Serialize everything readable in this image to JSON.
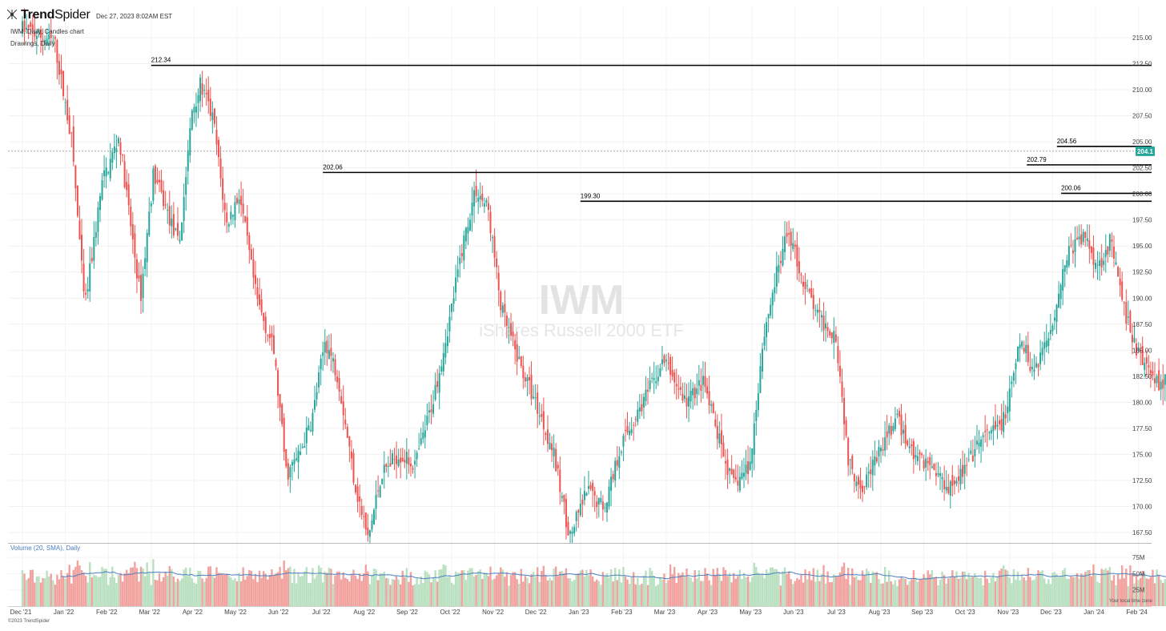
{
  "header": {
    "brand_bold": "Trend",
    "brand_light": "Spider",
    "timestamp": "Dec 27, 2023 8:02AM EST",
    "chart_desc": "IWM, Daily, Candles chart",
    "drawings": "Drawings, Daily",
    "watermark_ticker": "IWM",
    "watermark_name": "iShares Russell 2000 ETF",
    "volume_label": "Volume (20, SMA), Daily",
    "timezone_label": "Your local time zone",
    "copyright": "©2023 TrendSpider"
  },
  "colors": {
    "up": "#26a69a",
    "down": "#ef5350",
    "up_volume": "#b9e0c0",
    "down_volume": "#f2a29e",
    "sma": "#4a7fc1",
    "price_tag": "#26a69a"
  },
  "chart_data": {
    "type": "candlestick",
    "title": "IWM",
    "price_axis": {
      "ylim": [
        166.5,
        218.0
      ],
      "ticks": [
        "215.00",
        "212.50",
        "210.00",
        "207.50",
        "205.00",
        "202.50",
        "200.00",
        "197.50",
        "195.00",
        "192.50",
        "190.00",
        "187.50",
        "185.00",
        "182.50",
        "180.00",
        "177.50",
        "175.00",
        "172.50",
        "170.00",
        "167.50"
      ]
    },
    "volume_axis": {
      "ylim": [
        0,
        90
      ],
      "ticks": [
        "75M",
        "50M",
        "25M"
      ]
    },
    "x_axis": {
      "labels": [
        "Dec '21",
        "Jan '22",
        "Feb '22",
        "Mar '22",
        "Apr '22",
        "May '22",
        "Jun '22",
        "Jul '22",
        "Aug '22",
        "Sep '22",
        "Oct '22",
        "Nov '22",
        "Dec '22",
        "Jan '23",
        "Feb '23",
        "Mar '23",
        "Apr '23",
        "May '23",
        "Jun '23",
        "Jul '23",
        "Aug '23",
        "Sep '23",
        "Oct '23",
        "Nov '23",
        "Dec '23",
        "Jan '24",
        "Feb '24"
      ]
    },
    "current_price": {
      "label": "204.1",
      "value": 204.1
    },
    "levels": [
      {
        "label": "212.34",
        "value": 212.34,
        "start_month": 3
      },
      {
        "label": "202.06",
        "value": 202.06,
        "start_month": 7
      },
      {
        "label": "199.30",
        "value": 199.3,
        "start_month": 13
      },
      {
        "label": "204.56",
        "value": 204.56,
        "start_month": 24.1
      },
      {
        "label": "202.79",
        "value": 202.79,
        "start_month": 23.4
      },
      {
        "label": "200.06",
        "value": 200.06,
        "start_month": 24.2
      }
    ],
    "price_path": [
      [
        0.0,
        216.0
      ],
      [
        0.8,
        214.5
      ],
      [
        1.2,
        205.0
      ],
      [
        1.5,
        189.0
      ],
      [
        1.9,
        201.0
      ],
      [
        2.3,
        205.5
      ],
      [
        2.6,
        196.0
      ],
      [
        2.8,
        190.0
      ],
      [
        3.1,
        202.0
      ],
      [
        3.4,
        198.5
      ],
      [
        3.7,
        195.0
      ],
      [
        4.0,
        208.0
      ],
      [
        4.2,
        210.5
      ],
      [
        4.5,
        207.0
      ],
      [
        4.8,
        197.0
      ],
      [
        5.1,
        200.0
      ],
      [
        5.5,
        190.0
      ],
      [
        5.9,
        185.0
      ],
      [
        6.2,
        173.0
      ],
      [
        6.5,
        175.0
      ],
      [
        6.8,
        178.5
      ],
      [
        7.1,
        186.0
      ],
      [
        7.4,
        182.5
      ],
      [
        7.8,
        172.0
      ],
      [
        8.1,
        166.8
      ],
      [
        8.4,
        173.0
      ],
      [
        8.8,
        175.0
      ],
      [
        9.2,
        174.0
      ],
      [
        9.6,
        180.0
      ],
      [
        10.0,
        188.0
      ],
      [
        10.3,
        195.0
      ],
      [
        10.6,
        200.5
      ],
      [
        10.9,
        198.5
      ],
      [
        11.2,
        189.0
      ],
      [
        11.6,
        184.0
      ],
      [
        12.0,
        180.0
      ],
      [
        12.4,
        175.5
      ],
      [
        12.8,
        167.0
      ],
      [
        13.2,
        171.5
      ],
      [
        13.6,
        170.0
      ],
      [
        14.0,
        176.0
      ],
      [
        14.5,
        180.0
      ],
      [
        15.0,
        184.0
      ],
      [
        15.5,
        180.0
      ],
      [
        15.9,
        182.0
      ],
      [
        16.3,
        176.0
      ],
      [
        16.6,
        172.0
      ],
      [
        17.0,
        174.0
      ],
      [
        17.3,
        186.0
      ],
      [
        17.6,
        192.0
      ],
      [
        17.9,
        196.5
      ],
      [
        18.2,
        192.0
      ],
      [
        18.6,
        188.0
      ],
      [
        19.0,
        186.5
      ],
      [
        19.3,
        174.0
      ],
      [
        19.6,
        172.0
      ],
      [
        20.0,
        175.0
      ],
      [
        20.4,
        178.5
      ],
      [
        20.8,
        175.0
      ],
      [
        21.2,
        174.0
      ],
      [
        21.6,
        172.0
      ],
      [
        22.0,
        173.5
      ],
      [
        22.4,
        176.5
      ],
      [
        22.8,
        177.5
      ],
      [
        23.0,
        179.5
      ],
      [
        23.3,
        186.0
      ],
      [
        23.6,
        183.0
      ],
      [
        24.0,
        187.0
      ],
      [
        24.4,
        194.5
      ],
      [
        24.8,
        196.0
      ],
      [
        25.1,
        193.0
      ],
      [
        25.4,
        195.5
      ],
      [
        25.7,
        189.0
      ],
      [
        26.0,
        185.0
      ],
      [
        26.3,
        183.0
      ],
      [
        26.6,
        181.5
      ],
      [
        26.9,
        186.0
      ],
      [
        27.3,
        184.0
      ],
      [
        27.6,
        183.0
      ],
      [
        27.9,
        179.0
      ],
      [
        28.3,
        175.0
      ],
      [
        28.7,
        171.5
      ],
      [
        29.1,
        169.0
      ],
      [
        29.4,
        172.0
      ],
      [
        29.8,
        175.0
      ],
      [
        30.2,
        172.5
      ],
      [
        30.6,
        168.0
      ],
      [
        31.0,
        167.0
      ],
      [
        31.3,
        173.0
      ],
      [
        31.7,
        177.0
      ],
      [
        32.1,
        179.0
      ],
      [
        32.5,
        186.0
      ],
      [
        32.8,
        190.0
      ],
      [
        33.1,
        194.0
      ],
      [
        33.4,
        197.0
      ],
      [
        33.8,
        199.5
      ],
      [
        34.1,
        204.1
      ]
    ]
  }
}
